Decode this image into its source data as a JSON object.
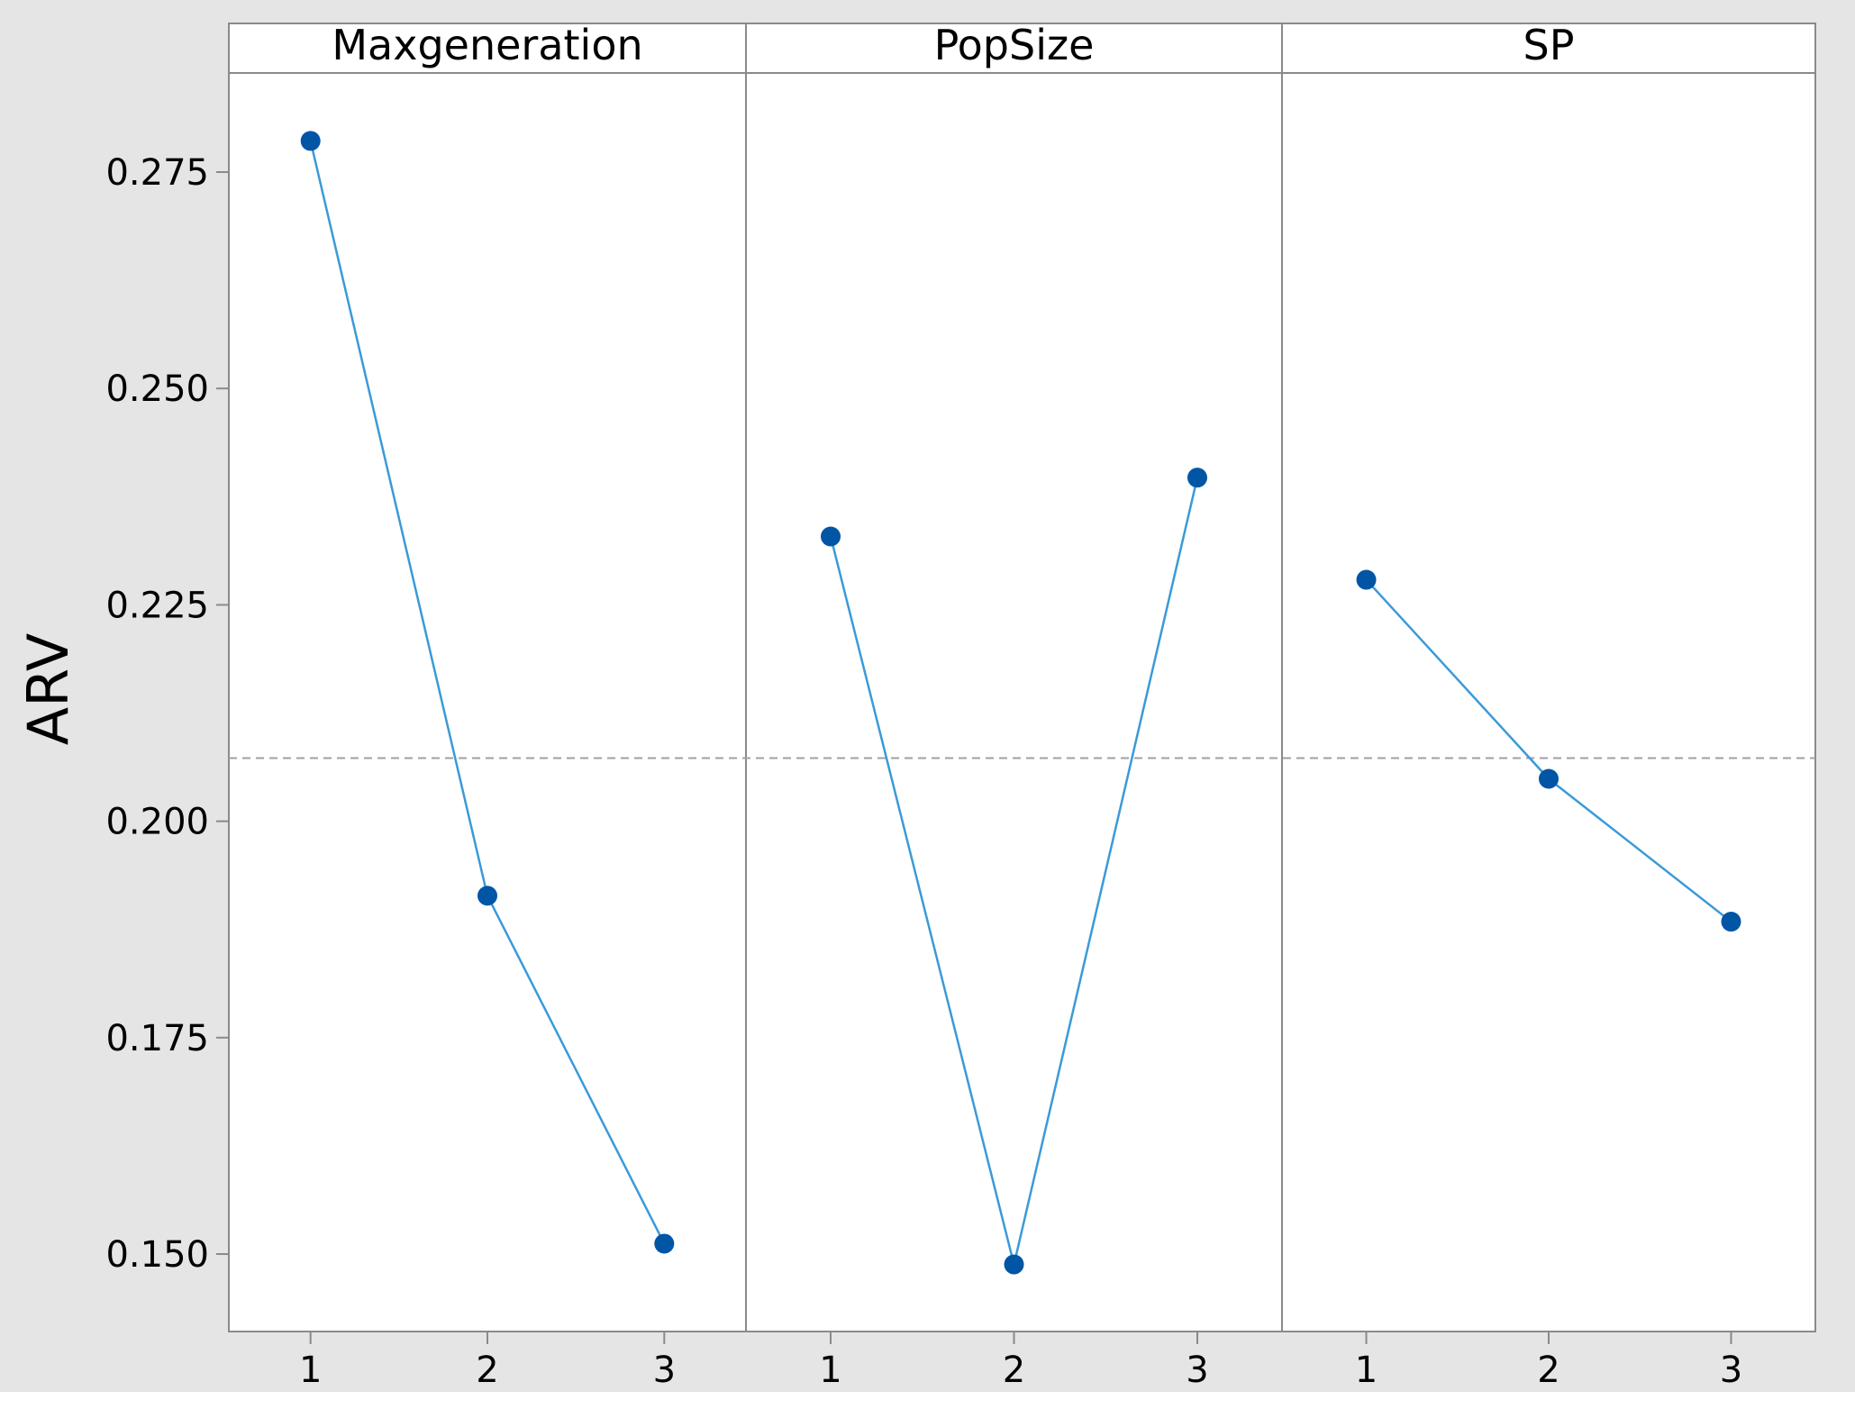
{
  "chart_data": {
    "type": "line",
    "ylabel": "ARV",
    "ylim": [
      0.14,
      0.287
    ],
    "yticks": [
      "0.150",
      "0.175",
      "0.200",
      "0.225",
      "0.250",
      "0.275"
    ],
    "reference_line": 0.2073,
    "grid": false,
    "colors": {
      "line": "#3a9ad9",
      "marker": "#0055a5",
      "background": "#e5e5e5",
      "reference": "#a0a0a0"
    },
    "panels": [
      {
        "title": "Maxgeneration",
        "categories": [
          "1",
          "2",
          "3"
        ],
        "values": [
          0.2786,
          0.1914,
          0.1512
        ]
      },
      {
        "title": "PopSize",
        "categories": [
          "1",
          "2",
          "3"
        ],
        "values": [
          0.2329,
          0.1488,
          0.2397
        ]
      },
      {
        "title": "SP",
        "categories": [
          "1",
          "2",
          "3"
        ],
        "values": [
          0.2279,
          0.2049,
          0.1884
        ]
      }
    ]
  }
}
